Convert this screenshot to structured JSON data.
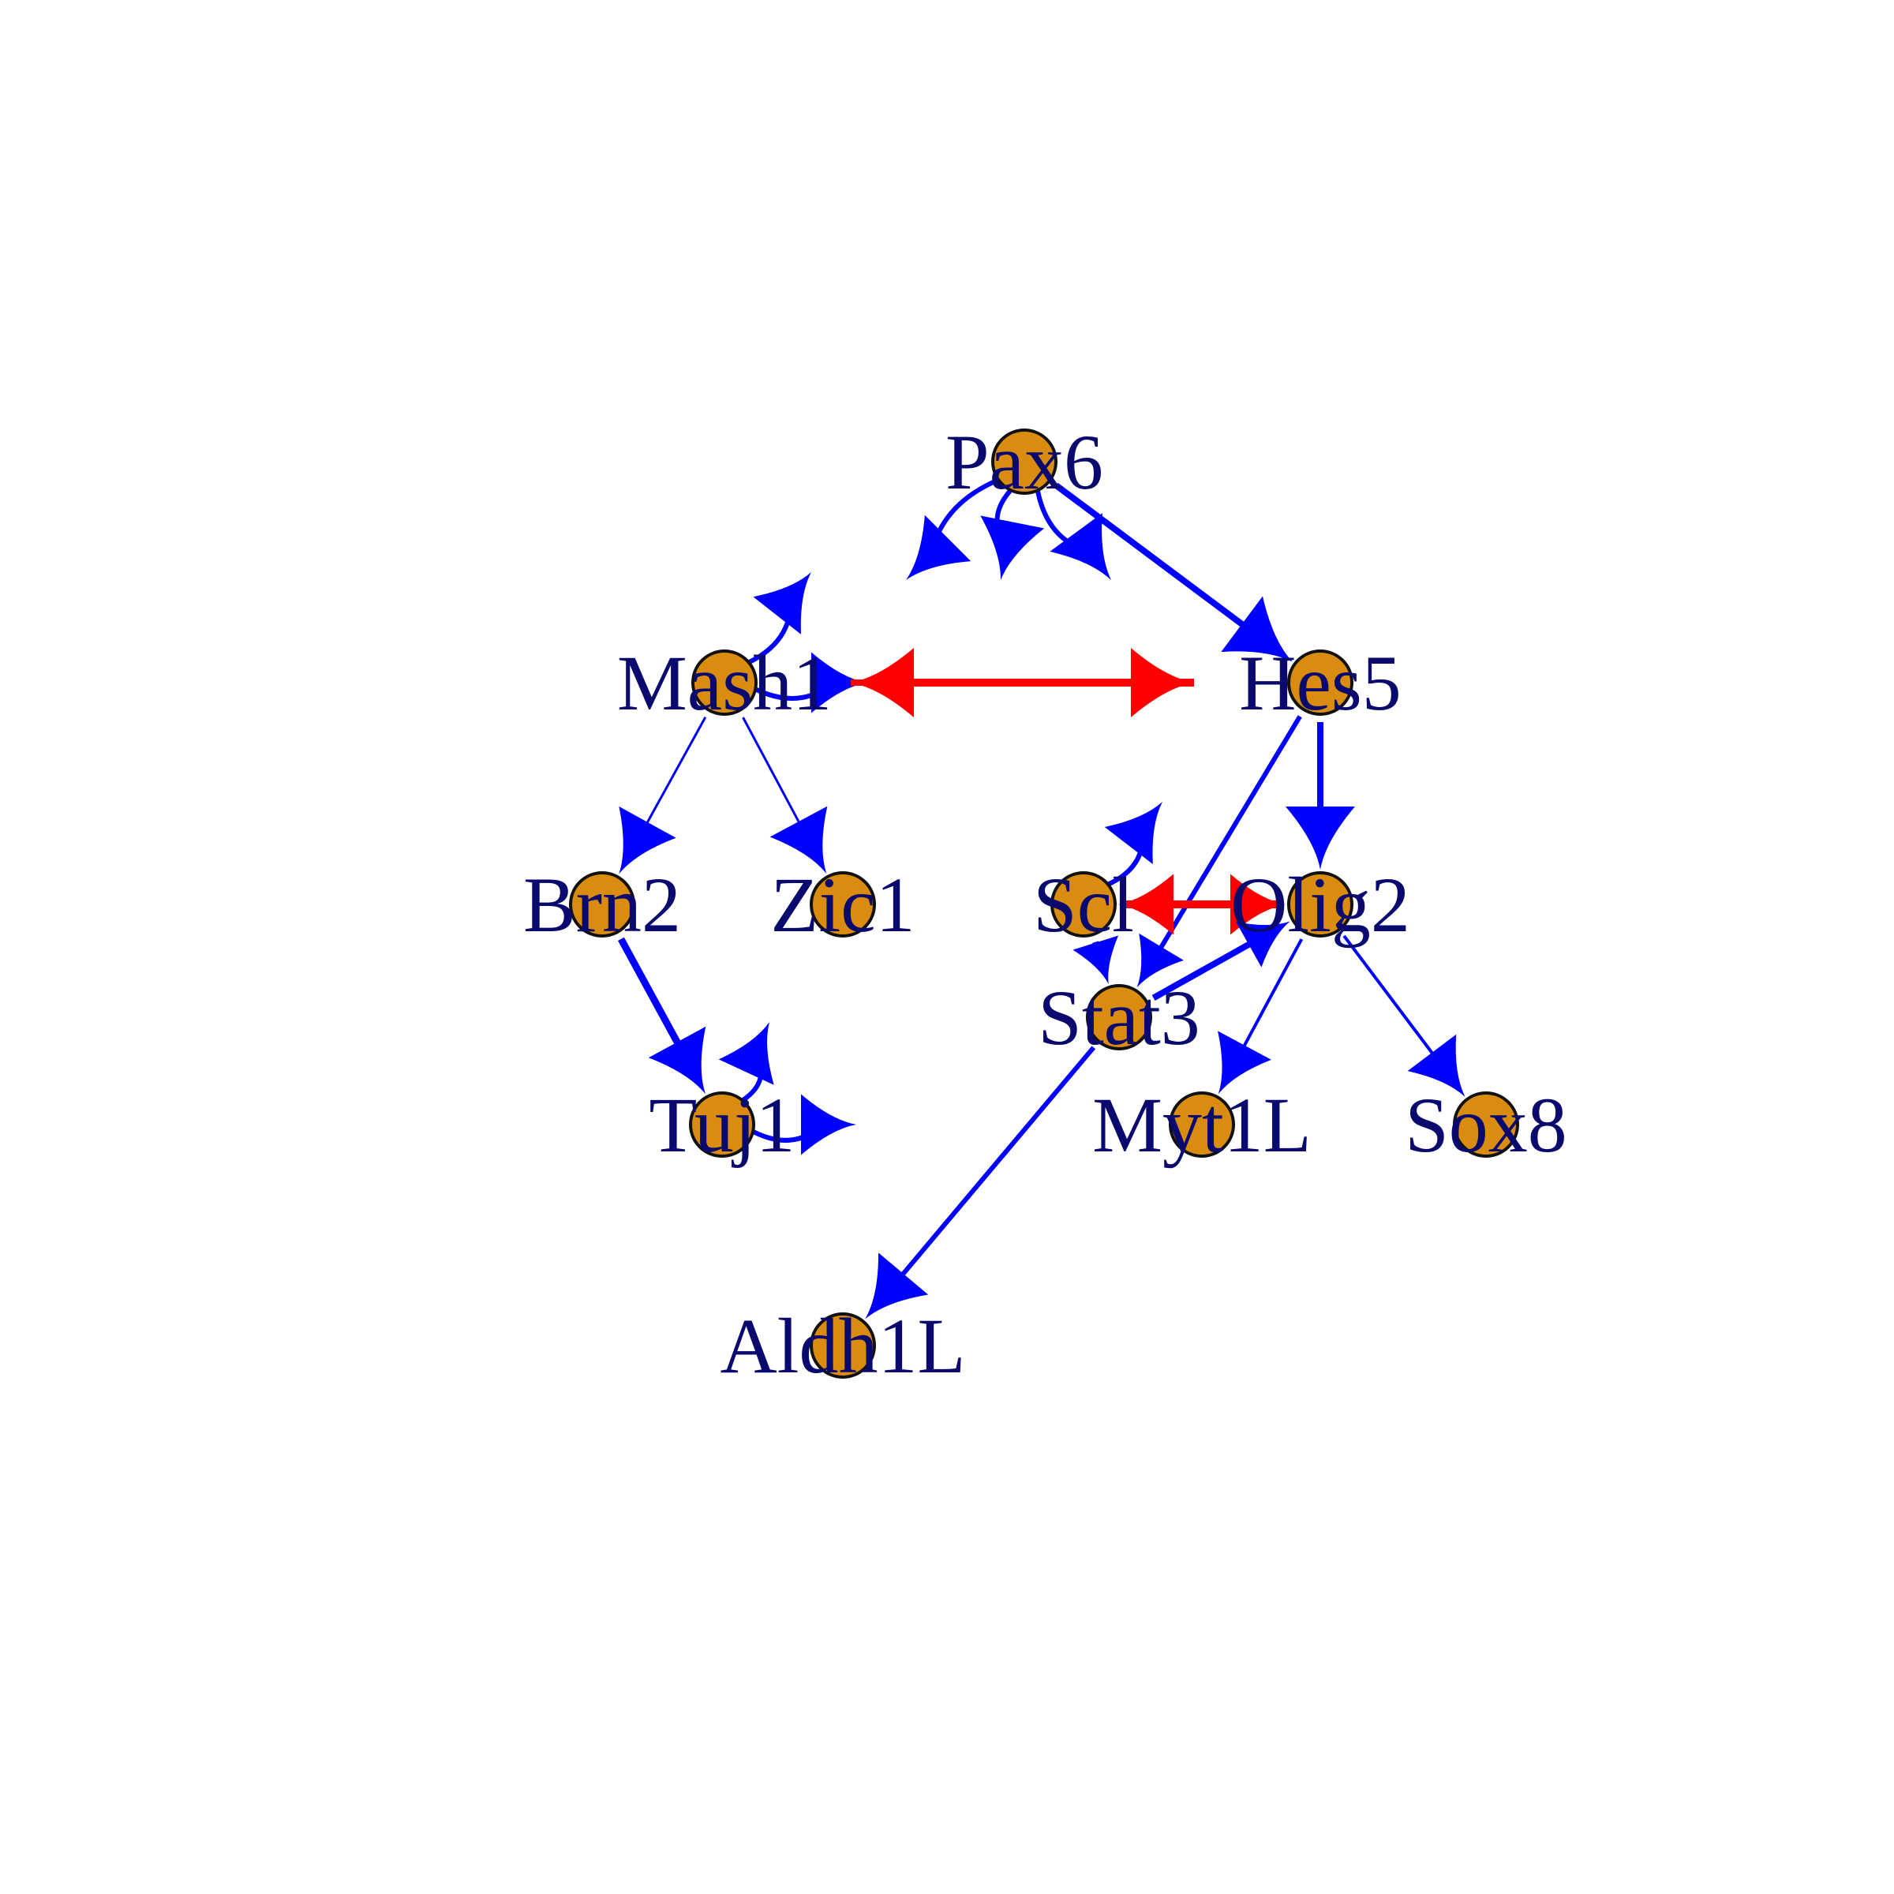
{
  "colors": {
    "activation": "#0000ff",
    "repression": "#ff0000",
    "node_fill": "#d98c10",
    "node_stroke": "#111111",
    "label": "#0a0a6e"
  },
  "nodes": [
    {
      "id": "pax6",
      "label": "Pax6"
    },
    {
      "id": "mash1",
      "label": "Mash1"
    },
    {
      "id": "hes5",
      "label": "Hes5"
    },
    {
      "id": "brn2",
      "label": "Brn2"
    },
    {
      "id": "zic1",
      "label": "Zic1"
    },
    {
      "id": "scl",
      "label": "Scl"
    },
    {
      "id": "olig2",
      "label": "Olig2"
    },
    {
      "id": "stat3",
      "label": "Stat3"
    },
    {
      "id": "tuj1",
      "label": "Tuj1"
    },
    {
      "id": "myt1l",
      "label": "Myt1L"
    },
    {
      "id": "sox8",
      "label": "Sox8"
    },
    {
      "id": "aldh1l",
      "label": "Aldh1L"
    }
  ],
  "edges": [
    {
      "from": "pax6",
      "to": "pax6",
      "type": "activation"
    },
    {
      "from": "pax6",
      "to": "hes5",
      "type": "activation"
    },
    {
      "from": "mash1",
      "to": "mash1",
      "type": "activation"
    },
    {
      "from": "hes5",
      "to": "mash1",
      "type": "repression"
    },
    {
      "from": "mash1",
      "to": "hes5",
      "type": "repression"
    },
    {
      "from": "mash1",
      "to": "brn2",
      "type": "activation"
    },
    {
      "from": "mash1",
      "to": "zic1",
      "type": "activation"
    },
    {
      "from": "hes5",
      "to": "olig2",
      "type": "activation"
    },
    {
      "from": "hes5",
      "to": "stat3",
      "type": "activation"
    },
    {
      "from": "brn2",
      "to": "tuj1",
      "type": "activation"
    },
    {
      "from": "tuj1",
      "to": "tuj1",
      "type": "activation"
    },
    {
      "from": "scl",
      "to": "scl",
      "type": "activation"
    },
    {
      "from": "scl",
      "to": "olig2",
      "type": "repression"
    },
    {
      "from": "olig2",
      "to": "scl",
      "type": "repression"
    },
    {
      "from": "scl",
      "to": "stat3",
      "type": "activation"
    },
    {
      "from": "stat3",
      "to": "olig2",
      "type": "activation"
    },
    {
      "from": "olig2",
      "to": "myt1l",
      "type": "activation"
    },
    {
      "from": "olig2",
      "to": "sox8",
      "type": "activation"
    },
    {
      "from": "stat3",
      "to": "aldh1l",
      "type": "activation"
    }
  ]
}
